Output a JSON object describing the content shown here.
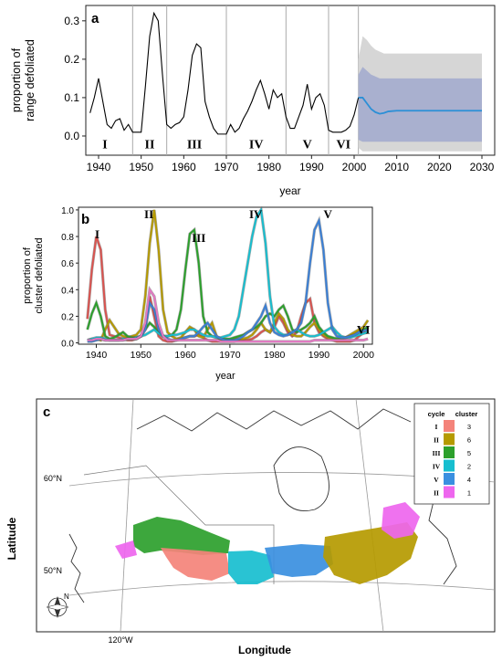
{
  "chart_data": [
    {
      "panel": "a",
      "type": "line",
      "xlabel": "year",
      "ylabel_lines": [
        "proportion of",
        "range defoliated"
      ],
      "xlim": [
        1937,
        2033
      ],
      "ylim": [
        -0.05,
        0.34
      ],
      "xticks": [
        1940,
        1950,
        1960,
        1970,
        1980,
        1990,
        2000,
        2010,
        2020,
        2030
      ],
      "yticks": [
        0.0,
        0.1,
        0.2,
        0.3
      ],
      "ytick_labels": [
        "0.0",
        "0.1",
        "0.2",
        "0.3"
      ],
      "cycle_dividers": [
        1948,
        1956,
        1970,
        1984,
        1994,
        2001
      ],
      "cycle_labels": [
        {
          "label": "I",
          "x": 1941.5
        },
        {
          "label": "II",
          "x": 1952
        },
        {
          "label": "III",
          "x": 1962.5
        },
        {
          "label": "IV",
          "x": 1977
        },
        {
          "label": "V",
          "x": 1989
        },
        {
          "label": "VI",
          "x": 1997.5
        }
      ],
      "cycle_label_y": -0.02,
      "observed": {
        "x": [
          1938,
          1939,
          1940,
          1941,
          1942,
          1943,
          1944,
          1945,
          1946,
          1947,
          1948,
          1949,
          1950,
          1951,
          1952,
          1953,
          1954,
          1955,
          1956,
          1957,
          1958,
          1959,
          1960,
          1961,
          1962,
          1963,
          1964,
          1965,
          1966,
          1967,
          1968,
          1969,
          1970,
          1971,
          1972,
          1973,
          1974,
          1975,
          1976,
          1977,
          1978,
          1979,
          1980,
          1981,
          1982,
          1983,
          1984,
          1985,
          1986,
          1987,
          1988,
          1989,
          1990,
          1991,
          1992,
          1993,
          1994,
          1995,
          1996,
          1997,
          1998,
          1999,
          2000,
          2001
        ],
        "y": [
          0.06,
          0.1,
          0.15,
          0.09,
          0.03,
          0.02,
          0.04,
          0.045,
          0.015,
          0.03,
          0.01,
          0.01,
          0.01,
          0.13,
          0.26,
          0.32,
          0.3,
          0.16,
          0.03,
          0.02,
          0.03,
          0.035,
          0.05,
          0.12,
          0.21,
          0.24,
          0.23,
          0.09,
          0.05,
          0.02,
          0.005,
          0.005,
          0.005,
          0.03,
          0.01,
          0.02,
          0.045,
          0.065,
          0.09,
          0.12,
          0.145,
          0.11,
          0.07,
          0.12,
          0.1,
          0.11,
          0.05,
          0.02,
          0.02,
          0.05,
          0.08,
          0.135,
          0.07,
          0.1,
          0.11,
          0.08,
          0.015,
          0.01,
          0.01,
          0.01,
          0.015,
          0.025,
          0.055,
          0.1
        ]
      },
      "forecast": {
        "x": [
          2001,
          2002,
          2003,
          2004,
          2005,
          2006,
          2007,
          2008,
          2010,
          2015,
          2020,
          2025,
          2030
        ],
        "y": [
          0.1,
          0.1,
          0.085,
          0.07,
          0.062,
          0.058,
          0.06,
          0.064,
          0.066,
          0.066,
          0.066,
          0.066,
          0.066
        ],
        "inner_band": {
          "lower": [
            -0.01,
            -0.015,
            -0.015,
            -0.015,
            -0.015,
            -0.015,
            -0.015,
            -0.015,
            -0.015,
            -0.015,
            -0.015,
            -0.015,
            -0.015
          ],
          "upper": [
            0.16,
            0.18,
            0.17,
            0.16,
            0.155,
            0.15,
            0.15,
            0.15,
            0.15,
            0.15,
            0.15,
            0.15,
            0.15
          ]
        },
        "outer_band": {
          "lower": [
            -0.03,
            -0.04,
            -0.04,
            -0.04,
            -0.04,
            -0.04,
            -0.04,
            -0.04,
            -0.04,
            -0.04,
            -0.04,
            -0.04,
            -0.04
          ],
          "upper": [
            0.2,
            0.26,
            0.25,
            0.235,
            0.225,
            0.22,
            0.215,
            0.215,
            0.215,
            0.215,
            0.215,
            0.215,
            0.215
          ]
        }
      },
      "colors": {
        "observed": "#000000",
        "forecast": "#2b8fd6",
        "inner_band": "#a9b0cf",
        "outer_band": "#d6d6d6",
        "divider": "#aaaaaa"
      }
    },
    {
      "panel": "b",
      "type": "line",
      "xlabel": "year",
      "ylabel_lines": [
        "proportion of",
        "cluster defoliated"
      ],
      "xlim": [
        1936,
        2002
      ],
      "ylim": [
        -0.01,
        1.02
      ],
      "xticks": [
        1940,
        1950,
        1960,
        1970,
        1980,
        1990,
        2000
      ],
      "yticks": [
        0.0,
        0.2,
        0.4,
        0.6,
        0.8,
        1.0
      ],
      "ytick_labels": [
        "0.0",
        "0.2",
        "0.4",
        "0.6",
        "0.8",
        "1.0"
      ],
      "cycle_labels": [
        {
          "label": "I",
          "x": 1940.2,
          "y": 0.85
        },
        {
          "label": "II",
          "x": 1951.8,
          "y": 1.0
        },
        {
          "label": "III",
          "x": 1963,
          "y": 0.82
        },
        {
          "label": "IV",
          "x": 1975.8,
          "y": 1.0
        },
        {
          "label": "V",
          "x": 1992,
          "y": 1.0
        },
        {
          "label": "VI",
          "x": 2000,
          "y": 0.13
        }
      ],
      "x": [
        1938,
        1939,
        1940,
        1941,
        1942,
        1943,
        1944,
        1945,
        1946,
        1947,
        1948,
        1949,
        1950,
        1951,
        1952,
        1953,
        1954,
        1955,
        1956,
        1957,
        1958,
        1959,
        1960,
        1961,
        1962,
        1963,
        1964,
        1965,
        1966,
        1967,
        1968,
        1969,
        1970,
        1971,
        1972,
        1973,
        1974,
        1975,
        1976,
        1977,
        1978,
        1979,
        1980,
        1981,
        1982,
        1983,
        1984,
        1985,
        1986,
        1987,
        1988,
        1989,
        1990,
        1991,
        1992,
        1993,
        1994,
        1995,
        1996,
        1997,
        1998,
        1999,
        2000,
        2001
      ],
      "series": [
        {
          "cluster": "3",
          "color": "#d9534f",
          "values": [
            0.18,
            0.55,
            0.8,
            0.7,
            0.25,
            0.06,
            0.05,
            0.04,
            0.03,
            0.02,
            0.02,
            0.03,
            0.05,
            0.12,
            0.35,
            0.2,
            0.05,
            0.02,
            0.01,
            0.01,
            0.02,
            0.03,
            0.04,
            0.05,
            0.05,
            0.06,
            0.04,
            0.02,
            0.01,
            0.01,
            0.01,
            0.01,
            0.01,
            0.01,
            0.02,
            0.02,
            0.02,
            0.03,
            0.05,
            0.08,
            0.1,
            0.08,
            0.12,
            0.2,
            0.15,
            0.08,
            0.05,
            0.08,
            0.2,
            0.3,
            0.33,
            0.15,
            0.08,
            0.05,
            0.03,
            0.02,
            0.01,
            0.01,
            0.01,
            0.01,
            0.02,
            0.05,
            0.08,
            0.12
          ]
        },
        {
          "cluster": "6",
          "color": "#b59a00",
          "values": [
            0.02,
            0.03,
            0.03,
            0.02,
            0.1,
            0.17,
            0.12,
            0.07,
            0.05,
            0.04,
            0.05,
            0.06,
            0.1,
            0.35,
            0.75,
            1.0,
            0.7,
            0.25,
            0.08,
            0.05,
            0.03,
            0.04,
            0.08,
            0.12,
            0.1,
            0.05,
            0.04,
            0.1,
            0.15,
            0.05,
            0.02,
            0.02,
            0.02,
            0.03,
            0.03,
            0.03,
            0.04,
            0.06,
            0.1,
            0.15,
            0.1,
            0.08,
            0.15,
            0.22,
            0.18,
            0.1,
            0.06,
            0.05,
            0.05,
            0.08,
            0.12,
            0.15,
            0.1,
            0.06,
            0.04,
            0.03,
            0.03,
            0.03,
            0.04,
            0.06,
            0.08,
            0.1,
            0.12,
            0.17
          ]
        },
        {
          "cluster": "5",
          "color": "#2ca02c",
          "values": [
            0.1,
            0.22,
            0.3,
            0.2,
            0.05,
            0.03,
            0.04,
            0.06,
            0.08,
            0.05,
            0.04,
            0.04,
            0.05,
            0.1,
            0.15,
            0.12,
            0.08,
            0.05,
            0.05,
            0.06,
            0.1,
            0.25,
            0.55,
            0.82,
            0.85,
            0.6,
            0.2,
            0.08,
            0.05,
            0.04,
            0.03,
            0.03,
            0.03,
            0.04,
            0.05,
            0.06,
            0.08,
            0.1,
            0.12,
            0.15,
            0.2,
            0.22,
            0.2,
            0.25,
            0.28,
            0.2,
            0.1,
            0.08,
            0.1,
            0.12,
            0.15,
            0.2,
            0.12,
            0.08,
            0.05,
            0.04,
            0.03,
            0.03,
            0.04,
            0.05,
            0.06,
            0.08,
            0.1,
            0.12
          ]
        },
        {
          "cluster": "2",
          "color": "#17becf",
          "values": [
            0.02,
            0.03,
            0.04,
            0.04,
            0.03,
            0.02,
            0.02,
            0.02,
            0.03,
            0.03,
            0.03,
            0.04,
            0.05,
            0.06,
            0.08,
            0.1,
            0.07,
            0.05,
            0.05,
            0.06,
            0.06,
            0.07,
            0.08,
            0.1,
            0.1,
            0.08,
            0.06,
            0.05,
            0.05,
            0.04,
            0.04,
            0.05,
            0.06,
            0.1,
            0.2,
            0.4,
            0.6,
            0.8,
            0.95,
            1.0,
            0.75,
            0.35,
            0.12,
            0.08,
            0.06,
            0.06,
            0.08,
            0.1,
            0.08,
            0.06,
            0.05,
            0.05,
            0.06,
            0.08,
            0.1,
            0.12,
            0.08,
            0.05,
            0.04,
            0.04,
            0.05,
            0.06,
            0.07,
            0.08
          ]
        },
        {
          "cluster": "4",
          "color": "#3a7fd5",
          "values": [
            0.01,
            0.01,
            0.02,
            0.03,
            0.02,
            0.02,
            0.02,
            0.02,
            0.02,
            0.03,
            0.03,
            0.03,
            0.05,
            0.1,
            0.3,
            0.25,
            0.1,
            0.05,
            0.03,
            0.02,
            0.02,
            0.03,
            0.04,
            0.05,
            0.05,
            0.08,
            0.12,
            0.15,
            0.1,
            0.05,
            0.03,
            0.02,
            0.02,
            0.02,
            0.03,
            0.05,
            0.08,
            0.1,
            0.15,
            0.2,
            0.28,
            0.15,
            0.08,
            0.06,
            0.05,
            0.06,
            0.08,
            0.1,
            0.15,
            0.3,
            0.6,
            0.85,
            0.92,
            0.7,
            0.3,
            0.1,
            0.05,
            0.04,
            0.04,
            0.05,
            0.06,
            0.08,
            0.09,
            0.1
          ]
        },
        {
          "cluster": "1",
          "color": "#e377c2",
          "values": [
            0.02,
            0.02,
            0.03,
            0.03,
            0.02,
            0.02,
            0.02,
            0.02,
            0.02,
            0.03,
            0.03,
            0.03,
            0.05,
            0.15,
            0.4,
            0.35,
            0.15,
            0.05,
            0.02,
            0.02,
            0.02,
            0.02,
            0.02,
            0.02,
            0.02,
            0.02,
            0.02,
            0.02,
            0.02,
            0.02,
            0.01,
            0.01,
            0.01,
            0.01,
            0.01,
            0.01,
            0.01,
            0.01,
            0.01,
            0.01,
            0.01,
            0.01,
            0.01,
            0.01,
            0.01,
            0.01,
            0.01,
            0.01,
            0.01,
            0.01,
            0.01,
            0.02,
            0.02,
            0.02,
            0.02,
            0.02,
            0.02,
            0.02,
            0.02,
            0.02,
            0.02,
            0.02,
            0.02,
            0.03
          ]
        }
      ]
    },
    {
      "panel": "c",
      "type": "map",
      "xlabel": "Longitude",
      "ylabel": "Latitude",
      "graticule_labels": {
        "lat": [
          "60°N",
          "50°N"
        ],
        "lon": [
          "120°W"
        ]
      },
      "north_arrow": "N",
      "legend": {
        "headers": [
          "cycle",
          "cluster"
        ],
        "rows": [
          {
            "cycle": "I",
            "cluster": "3",
            "color": "#f4837a"
          },
          {
            "cycle": "II",
            "cluster": "6",
            "color": "#b59a00"
          },
          {
            "cycle": "III",
            "cluster": "5",
            "color": "#2ca02c"
          },
          {
            "cycle": "IV",
            "cluster": "2",
            "color": "#17becf"
          },
          {
            "cycle": "V",
            "cluster": "4",
            "color": "#3a8fe0"
          },
          {
            "cycle": "II",
            "cluster": "1",
            "color": "#ee66ee"
          }
        ]
      }
    }
  ],
  "panels": {
    "a": {
      "tag": "a"
    },
    "b": {
      "tag": "b"
    },
    "c": {
      "tag": "c"
    }
  }
}
